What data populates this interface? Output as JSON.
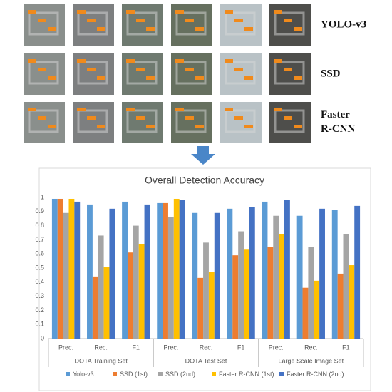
{
  "image_rows": [
    "YOLO-v3",
    "SSD",
    "Faster R-CNN"
  ],
  "chart_data": {
    "type": "bar",
    "title": "Overall Detection Accuracy",
    "categories": [
      "Prec.",
      "Rec.",
      "F1",
      "Prec.",
      "Rec.",
      "F1",
      "Prec.",
      "Rec.",
      "F1"
    ],
    "groups": [
      "DOTA Training Set",
      "DOTA Test Set",
      "Large Scale Image Set"
    ],
    "series": [
      {
        "name": "Yolo-v3",
        "color": "#5b9bd5",
        "values": [
          0.99,
          0.95,
          0.97,
          0.96,
          0.89,
          0.92,
          0.97,
          0.87,
          0.91
        ]
      },
      {
        "name": "SSD (1st)",
        "color": "#ed7d31",
        "values": [
          0.99,
          0.44,
          0.61,
          0.96,
          0.43,
          0.59,
          0.65,
          0.36,
          0.46
        ]
      },
      {
        "name": "SSD (2nd)",
        "color": "#a5a5a5",
        "values": [
          0.89,
          0.73,
          0.8,
          0.86,
          0.68,
          0.76,
          0.87,
          0.65,
          0.74
        ]
      },
      {
        "name": "Faster R-CNN (1st)",
        "color": "#ffc000",
        "values": [
          0.99,
          0.51,
          0.67,
          0.99,
          0.47,
          0.63,
          0.74,
          0.41,
          0.52
        ]
      },
      {
        "name": "Faster R-CNN (2nd)",
        "color": "#4472c4",
        "values": [
          0.97,
          0.92,
          0.95,
          0.98,
          0.89,
          0.93,
          0.98,
          0.92,
          0.94
        ]
      }
    ],
    "ylim": [
      0,
      1
    ],
    "yticks": [
      0,
      0.1,
      0.2,
      0.3,
      0.4,
      0.5,
      0.6,
      0.7,
      0.8,
      0.9,
      1
    ],
    "grid": false
  }
}
